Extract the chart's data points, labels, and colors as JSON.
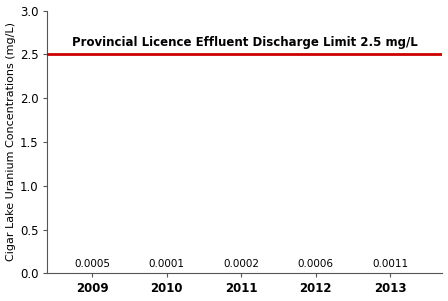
{
  "years": [
    2009,
    2010,
    2011,
    2012,
    2013
  ],
  "concentrations": [
    0.0005,
    0.0001,
    0.0002,
    0.0006,
    0.0011
  ],
  "discharge_limit": 2.5,
  "discharge_label": "Provincial Licence Effluent Discharge Limit 2.5 mg/L",
  "ylabel": "Cigar Lake Uranium Concentrations (mg/L)",
  "ylim": [
    0,
    3.0
  ],
  "yticks": [
    0.0,
    0.5,
    1.0,
    1.5,
    2.0,
    2.5,
    3.0
  ],
  "xlim": [
    2008.4,
    2013.7
  ],
  "line_color": "#cc0000",
  "bar_color": "#111111",
  "background_color": "#ffffff",
  "annotation_fontsize": 7.5,
  "ylabel_fontsize": 8.0,
  "limit_label_fontsize": 8.5,
  "tick_fontsize": 8.5
}
